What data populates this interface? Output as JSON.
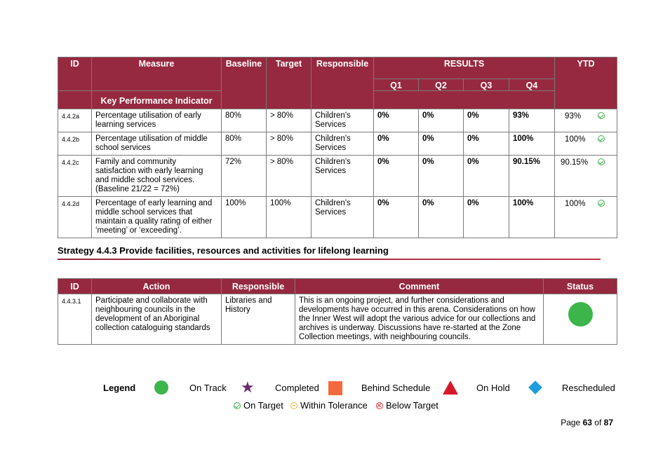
{
  "kpi_table": {
    "headers": {
      "id": "ID",
      "measure": "Measure",
      "baseline": "Baseline",
      "target": "Target",
      "responsible": "Responsible",
      "results": "RESULTS",
      "ytd": "YTD",
      "q1": "Q1",
      "q2": "Q2",
      "q3": "Q3",
      "q4": "Q4",
      "kpi": "Key Performance Indicator"
    },
    "rows": [
      {
        "id": "4.4.2a",
        "measure": "Percentage utilisation of early learning services",
        "baseline": "80%",
        "target": "> 80%",
        "responsible": "Children's Services",
        "q1": "0%",
        "q2": "0%",
        "q3": "0%",
        "q4": "93%",
        "ytd": "93%",
        "status": "on-target"
      },
      {
        "id": "4.4.2b",
        "measure": "Percentage utilisation of middle school services",
        "baseline": "80%",
        "target": "> 80%",
        "responsible": "Children's Services",
        "q1": "0%",
        "q2": "0%",
        "q3": "0%",
        "q4": "100%",
        "ytd": "100%",
        "status": "on-target"
      },
      {
        "id": "4.4.2c",
        "measure": "Family and community satisfaction with early learning and middle school services. (Baseline 21/22 = 72%)",
        "baseline": "72%",
        "target": "> 80%",
        "responsible": "Children's Services",
        "q1": "0%",
        "q2": "0%",
        "q3": "0%",
        "q4": "90.15%",
        "ytd": "90.15%",
        "status": "on-target"
      },
      {
        "id": "4.4.2d",
        "measure": "Percentage of early learning and middle school services that maintain a quality rating of either ‘meeting’ or ‘exceeding’.",
        "baseline": "100%",
        "target": "100%",
        "responsible": "Children's Services",
        "q1": "0%",
        "q2": "0%",
        "q3": "0%",
        "q4": "100%",
        "ytd": "100%",
        "status": "on-target"
      }
    ]
  },
  "strategy": {
    "heading": "Strategy 4.4.3 Provide facilities, resources and activities for lifelong learning"
  },
  "action_table": {
    "headers": {
      "id": "ID",
      "action": "Action",
      "responsible": "Responsible",
      "comment": "Comment",
      "status": "Status"
    },
    "rows": [
      {
        "id": "4.4.3.1",
        "action": "Participate and collaborate with neighbouring councils in the development of an Aboriginal collection cataloguing standards",
        "responsible": "Libraries and History",
        "comment": "This is an ongoing project, and further considerations and developments have occurred in this arena.  Considerations on how the Inner West will adopt the various advice for our collections and archives is underway.  Discussions have re-started at the Zone Collection meetings, with neighbouring councils.",
        "status": "on-track"
      }
    ]
  },
  "legend": {
    "title": "Legend",
    "on_track": "On Track",
    "completed": "Completed",
    "behind_schedule": "Behind Schedule",
    "on_hold": "On Hold",
    "rescheduled": "Rescheduled",
    "on_target": "On Target",
    "within_tolerance": "Within Tolerance",
    "below_target": "Below Target",
    "colors": {
      "on_track": "#3cb54a",
      "completed": "#6b2d6b",
      "behind_schedule": "#f26a3d",
      "on_hold": "#d7182a",
      "rescheduled": "#1e9de0"
    }
  },
  "page": {
    "prefix": "Page",
    "current": "63",
    "separator": "of",
    "total": "87"
  }
}
